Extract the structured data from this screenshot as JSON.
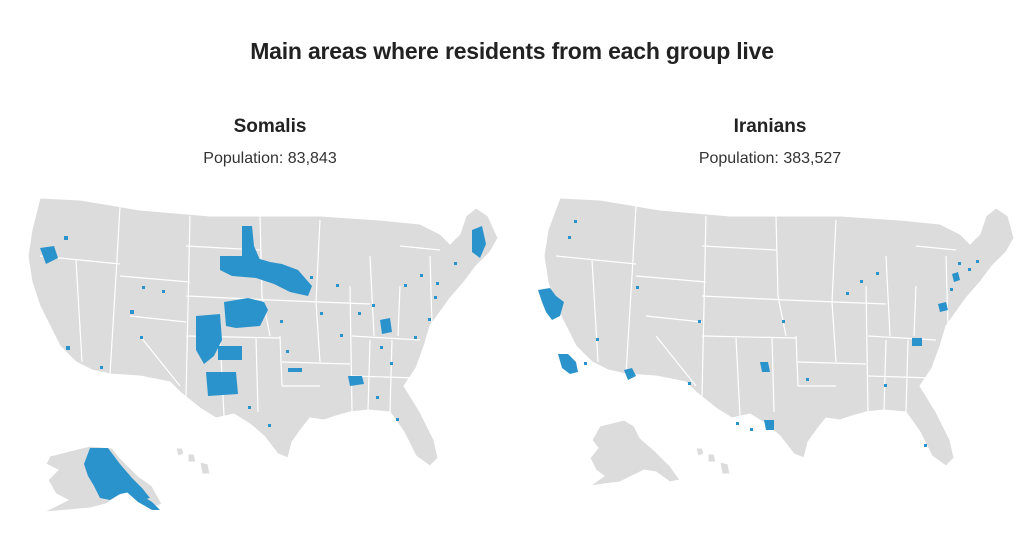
{
  "title": "Main areas where residents from each group live",
  "colors": {
    "land": "#dcdcdc",
    "border": "#ffffff",
    "highlight": "#2b93cc"
  },
  "panels": [
    {
      "name": "Somalis",
      "population_label": "Population:",
      "population": "83,843"
    },
    {
      "name": "Iranians",
      "population_label": "Population:",
      "population": "383,527"
    }
  ]
}
